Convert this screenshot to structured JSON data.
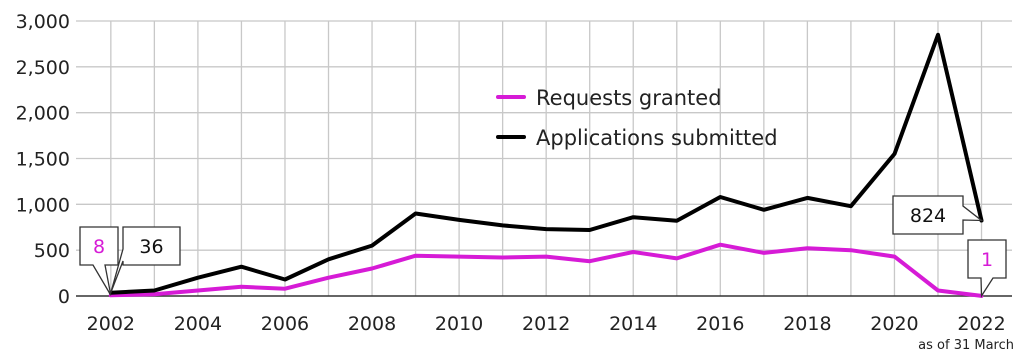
{
  "chart_data": {
    "type": "line",
    "x": [
      2002,
      2003,
      2004,
      2005,
      2006,
      2007,
      2008,
      2009,
      2010,
      2011,
      2012,
      2013,
      2014,
      2015,
      2016,
      2017,
      2018,
      2019,
      2020,
      2021,
      2022
    ],
    "series": [
      {
        "name": "Requests granted",
        "color": "#d61bd6",
        "values": [
          8,
          20,
          60,
          100,
          80,
          200,
          300,
          440,
          430,
          420,
          430,
          380,
          480,
          410,
          560,
          470,
          520,
          500,
          430,
          60,
          1
        ]
      },
      {
        "name": "Applications submitted",
        "color": "#000000",
        "values": [
          36,
          60,
          200,
          320,
          180,
          400,
          550,
          900,
          830,
          770,
          730,
          720,
          860,
          820,
          1080,
          940,
          1070,
          980,
          1550,
          2850,
          824
        ]
      }
    ],
    "ylim": [
      0,
      3000
    ],
    "xlim": [
      2001.2,
      2022.7
    ],
    "y_ticks": [
      "0",
      "500",
      "1,000",
      "1,500",
      "2,000",
      "2,500",
      "3,000"
    ],
    "y_tick_values": [
      0,
      500,
      1000,
      1500,
      2000,
      2500,
      3000
    ],
    "x_ticks": [
      "2002",
      "2004",
      "2006",
      "2008",
      "2010",
      "2012",
      "2014",
      "2016",
      "2018",
      "2020",
      "2022"
    ],
    "x_tick_values": [
      2002,
      2004,
      2006,
      2008,
      2010,
      2012,
      2014,
      2016,
      2018,
      2020,
      2022
    ],
    "grid": true,
    "legend_position": "upper-center",
    "annotations": [
      {
        "text": "8",
        "series": "Requests granted",
        "year": 2002,
        "color": "#d61bd6"
      },
      {
        "text": "36",
        "series": "Applications submitted",
        "year": 2002,
        "color": "#111111"
      },
      {
        "text": "824",
        "series": "Applications submitted",
        "year": 2022,
        "color": "#111111"
      },
      {
        "text": "1",
        "series": "Requests granted",
        "year": 2022,
        "color": "#d61bd6"
      }
    ],
    "note": "as of 31 March"
  }
}
